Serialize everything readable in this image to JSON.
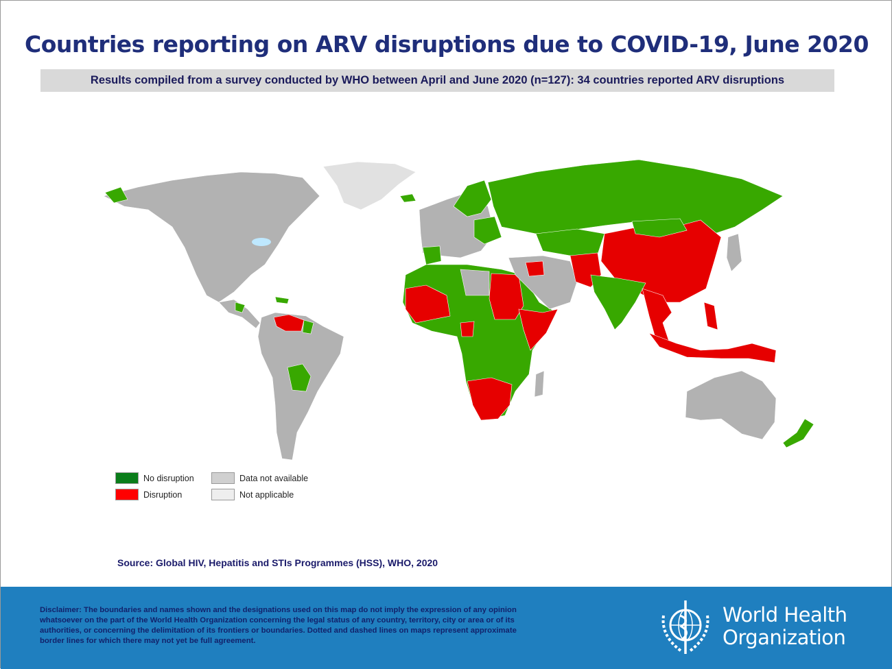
{
  "title": "Countries reporting on ARV disruptions due to COVID-19, June 2020",
  "subtitle": "Results compiled from a survey conducted by WHO between April and June 2020 (n=127): 34 countries reported ARV disruptions",
  "colors": {
    "no_disruption": "#0a7d1a",
    "map_no_disruption": "#38a800",
    "disruption": "#e60000",
    "data_not_available": "#b2b2b2",
    "not_applicable": "#e1e1e1",
    "water": "#bee8ff",
    "footer": "#1f7fbf",
    "title": "#1f2e7a"
  },
  "legend": [
    {
      "label": "No disruption",
      "color": "#0a7d1a"
    },
    {
      "label": "Disruption",
      "color": "#ff0000"
    },
    {
      "label": "Data not available",
      "color": "#d0d0d0"
    },
    {
      "label": "Not applicable",
      "color": "#eeeeee"
    }
  ],
  "source": "Source:  Global HIV, Hepatitis and STIs Programmes (HSS), WHO, 2020",
  "disclaimer": "Disclaimer: The boundaries and names shown and the designations used on this map do not imply the expression of any opinion whatsoever on the part of the World Health Organization concerning the legal status of any country, territory, city or area or of its authorities, or concerning the delimitation of its frontiers or boundaries. Dotted and dashed lines on maps represent approximate border lines for which there may not yet be full agreement.",
  "logo": {
    "line1": "World Health",
    "line2": "Organization"
  }
}
